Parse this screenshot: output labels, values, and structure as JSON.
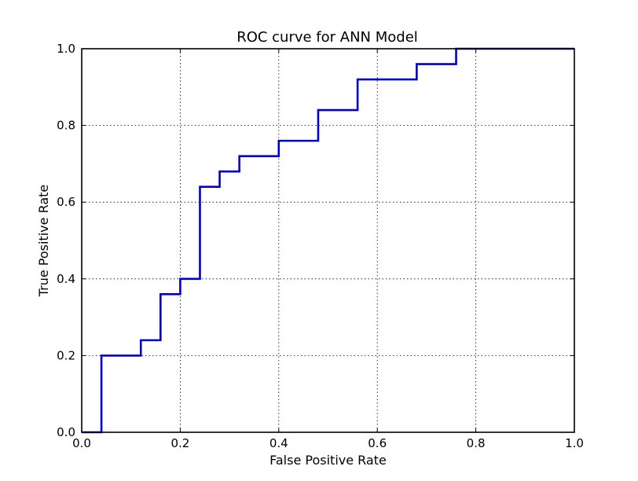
{
  "chart_data": {
    "type": "line",
    "title": "ROC curve for ANN Model",
    "xlabel": "False Positive Rate",
    "ylabel": "True Positive Rate",
    "xlim": [
      0.0,
      1.0
    ],
    "ylim": [
      0.0,
      1.0
    ],
    "x_ticks": [
      "0.0",
      "0.2",
      "0.4",
      "0.6",
      "0.8",
      "1.0"
    ],
    "y_ticks": [
      "0.0",
      "0.2",
      "0.4",
      "0.6",
      "0.8",
      "1.0"
    ],
    "grid": true,
    "legend": "none",
    "series": [
      {
        "color": "#0000cc",
        "x": [
          0.0,
          0.04,
          0.04,
          0.12,
          0.12,
          0.16,
          0.16,
          0.2,
          0.2,
          0.24,
          0.24,
          0.28,
          0.28,
          0.32,
          0.32,
          0.4,
          0.4,
          0.48,
          0.48,
          0.56,
          0.56,
          0.68,
          0.68,
          0.76,
          0.76,
          1.0
        ],
        "y": [
          0.0,
          0.0,
          0.2,
          0.2,
          0.24,
          0.24,
          0.36,
          0.36,
          0.4,
          0.4,
          0.64,
          0.64,
          0.68,
          0.68,
          0.72,
          0.72,
          0.76,
          0.76,
          0.84,
          0.84,
          0.92,
          0.92,
          0.96,
          0.96,
          1.0,
          1.0
        ]
      }
    ]
  }
}
